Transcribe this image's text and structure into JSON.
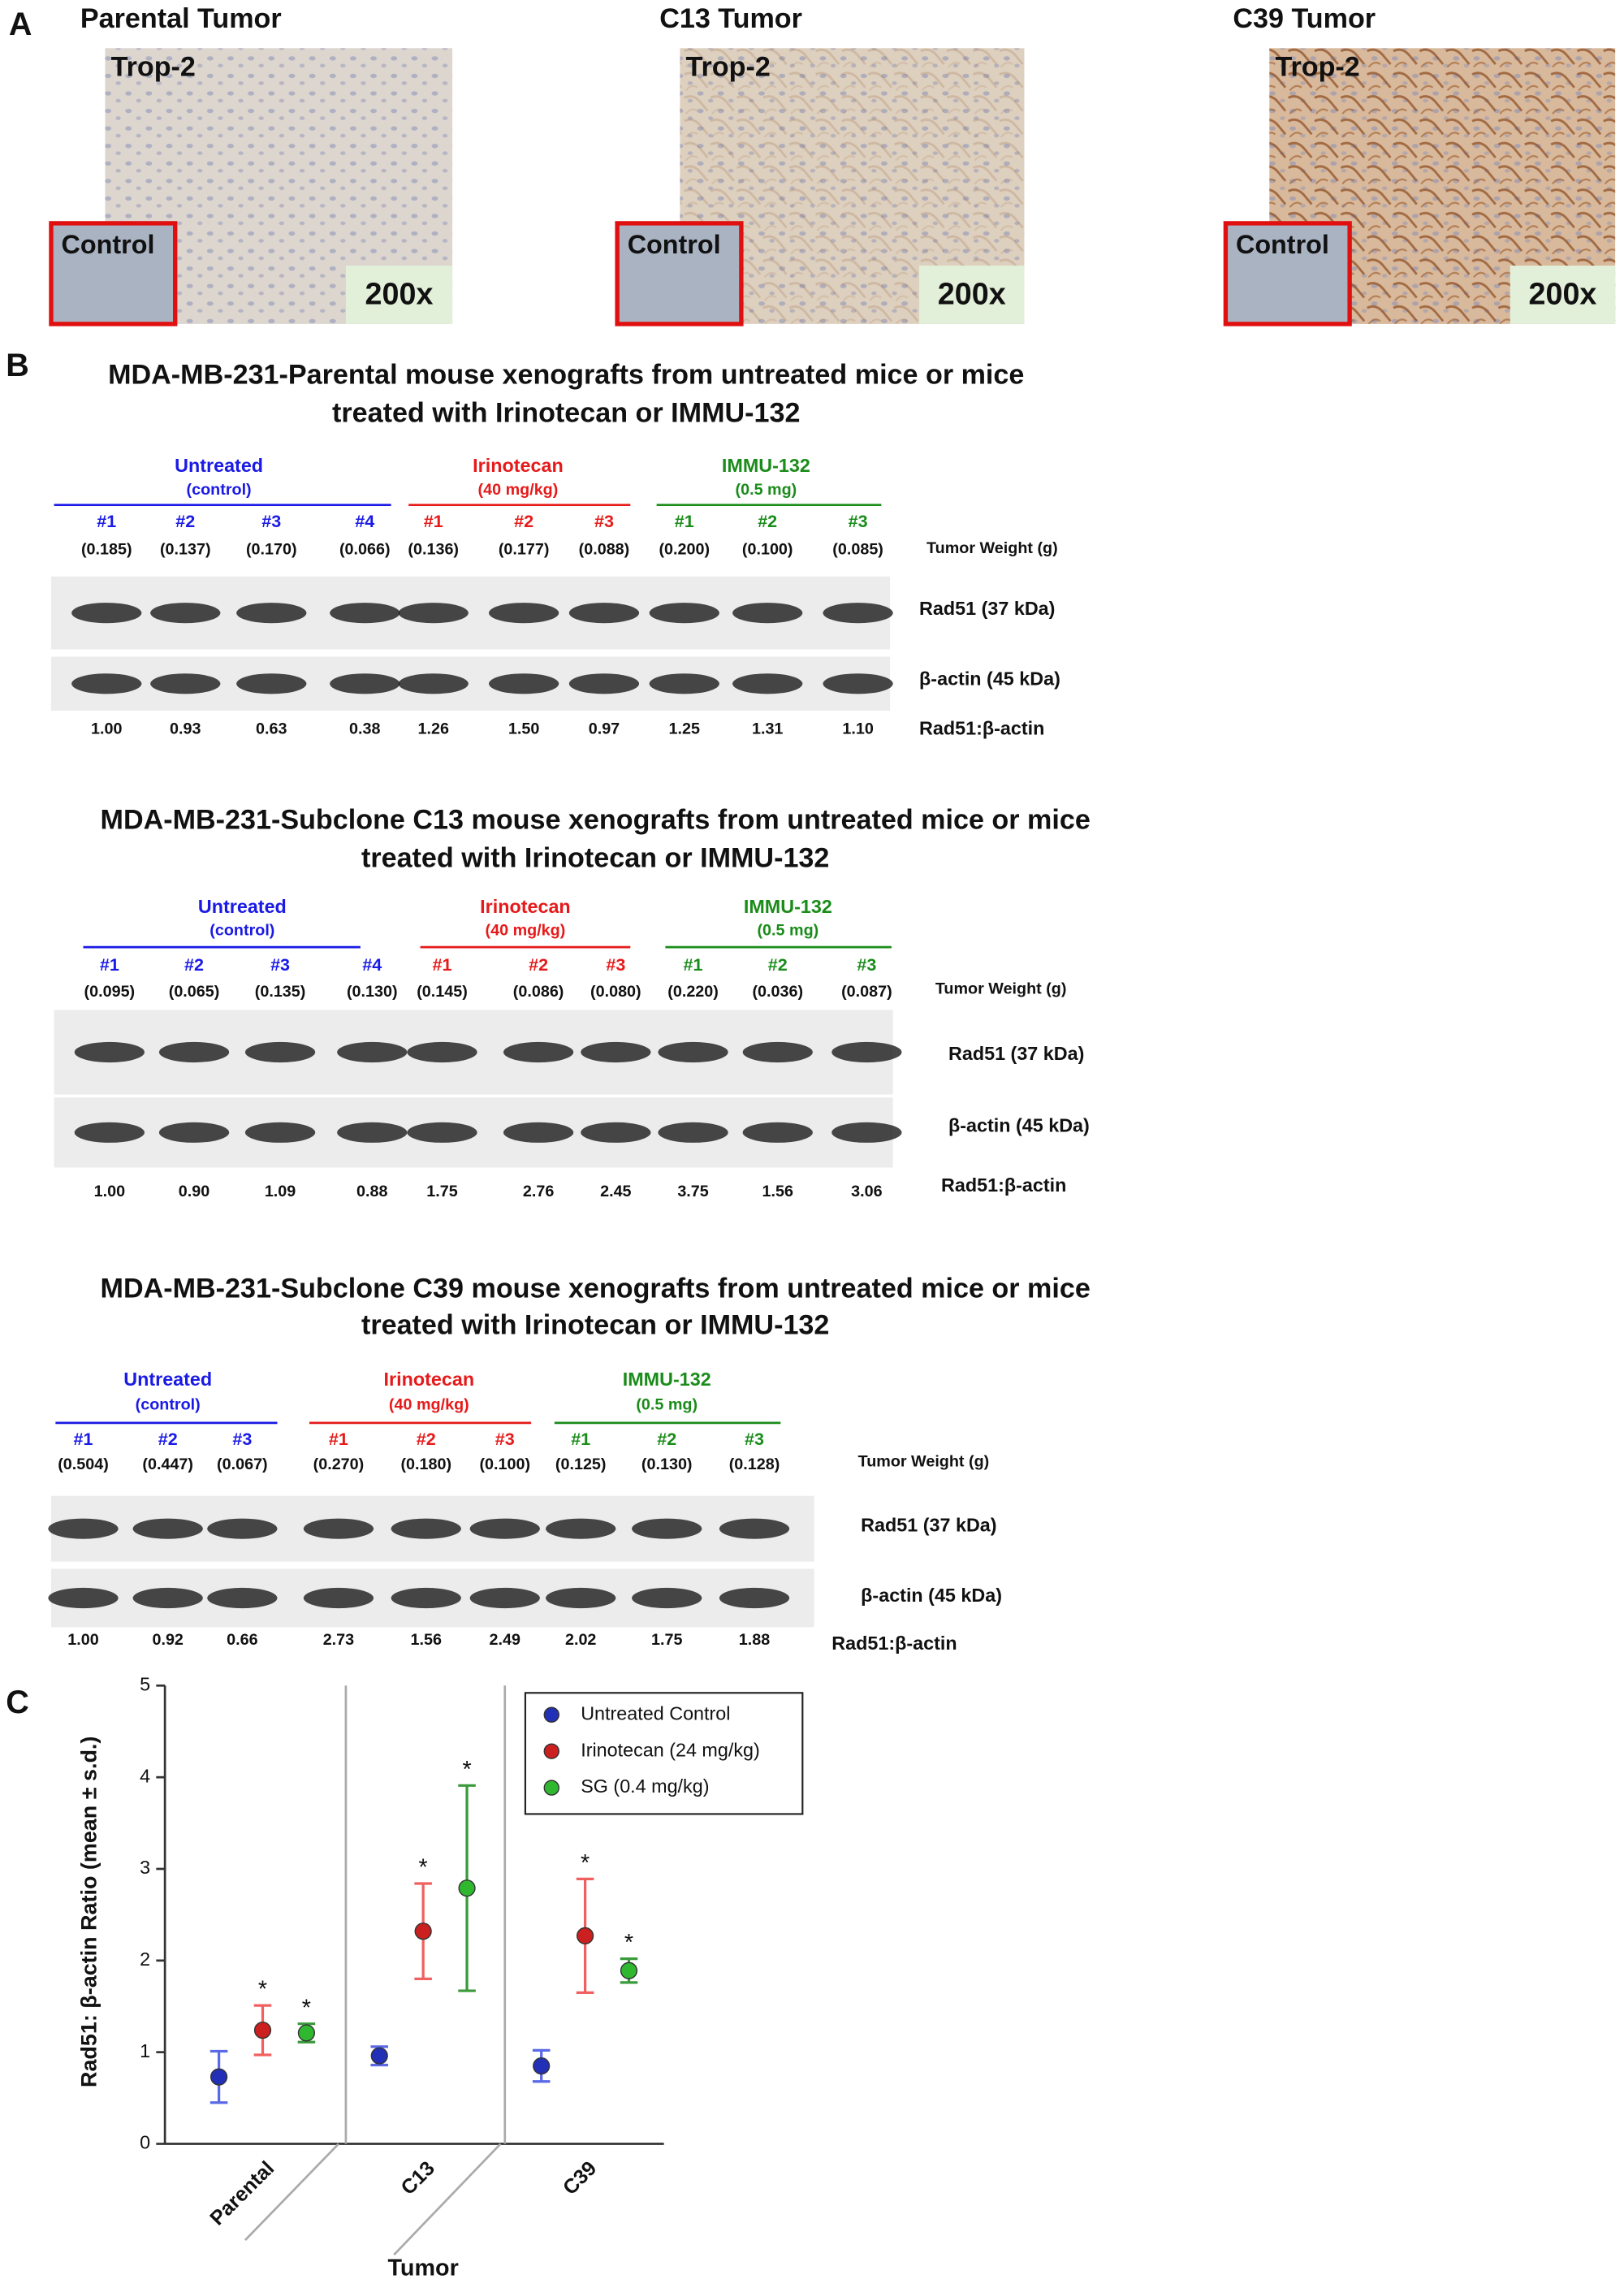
{
  "panel_a": {
    "label": "A",
    "images": [
      {
        "title": "Parental Tumor",
        "stain": "Trop-2",
        "control": "Control",
        "magnification": "200x"
      },
      {
        "title": "C13 Tumor",
        "stain": "Trop-2",
        "control": "Control",
        "magnification": "200x"
      },
      {
        "title": "C39 Tumor",
        "stain": "Trop-2",
        "control": "Control",
        "magnification": "200x"
      }
    ]
  },
  "panel_b": {
    "label": "B",
    "blots": [
      {
        "title_lines": [
          "MDA-MB-231-Parental  mouse xenografts from untreated mice or mice",
          "treated with Irinotecan or IMMU-132"
        ],
        "groups": [
          {
            "name": "Untreated",
            "dose": "(control)",
            "color": "#1a1ae6",
            "samples": [
              "#1",
              "#2",
              "#3",
              "#4"
            ],
            "weights": [
              "(0.185)",
              "(0.137)",
              "(0.170)",
              "(0.066)"
            ]
          },
          {
            "name": "Irinotecan",
            "dose": "(40 mg/kg)",
            "color": "#e61a1a",
            "samples": [
              "#1",
              "#2",
              "#3"
            ],
            "weights": [
              "(0.136)",
              "(0.177)",
              "(0.088)"
            ]
          },
          {
            "name": "IMMU-132",
            "dose": "(0.5 mg)",
            "color": "#1a8c1a",
            "samples": [
              "#1",
              "#2",
              "#3"
            ],
            "weights": [
              "(0.200)",
              "(0.100)",
              "(0.085)"
            ]
          }
        ],
        "weight_label": "Tumor Weight (g)",
        "bands": [
          "Rad51 (37 kDa)",
          "β-actin (45 kDa)"
        ],
        "ratio_label": "Rad51:β-actin",
        "ratios": [
          "1.00",
          "0.93",
          "0.63",
          "0.38",
          "1.26",
          "1.50",
          "0.97",
          "1.25",
          "1.31",
          "1.10"
        ]
      },
      {
        "title_lines": [
          "MDA-MB-231-Subclone C13 mouse xenografts from untreated mice or mice",
          "treated with Irinotecan or IMMU-132"
        ],
        "groups": [
          {
            "name": "Untreated",
            "dose": "(control)",
            "color": "#1a1ae6",
            "samples": [
              "#1",
              "#2",
              "#3",
              "#4"
            ],
            "weights": [
              "(0.095)",
              "(0.065)",
              "(0.135)",
              "(0.130)"
            ]
          },
          {
            "name": "Irinotecan",
            "dose": "(40 mg/kg)",
            "color": "#e61a1a",
            "samples": [
              "#1",
              "#2",
              "#3"
            ],
            "weights": [
              "(0.145)",
              "(0.086)",
              "(0.080)"
            ]
          },
          {
            "name": "IMMU-132",
            "dose": "(0.5 mg)",
            "color": "#1a8c1a",
            "samples": [
              "#1",
              "#2",
              "#3"
            ],
            "weights": [
              "(0.220)",
              "(0.036)",
              "(0.087)"
            ]
          }
        ],
        "weight_label": "Tumor Weight (g)",
        "bands": [
          "Rad51 (37 kDa)",
          "β-actin (45 kDa)"
        ],
        "ratio_label": "Rad51:β-actin",
        "ratios": [
          "1.00",
          "0.90",
          "1.09",
          "0.88",
          "1.75",
          "2.76",
          "2.45",
          "3.75",
          "1.56",
          "3.06"
        ]
      },
      {
        "title_lines": [
          "MDA-MB-231-Subclone C39 mouse xenografts from untreated mice or mice",
          "treated with Irinotecan or IMMU-132"
        ],
        "groups": [
          {
            "name": "Untreated",
            "dose": "(control)",
            "color": "#1a1ae6",
            "samples": [
              "#1",
              "#2",
              "#3"
            ],
            "weights": [
              "(0.504)",
              "(0.447)",
              "(0.067)"
            ]
          },
          {
            "name": "Irinotecan",
            "dose": "(40 mg/kg)",
            "color": "#e61a1a",
            "samples": [
              "#1",
              "#2",
              "#3"
            ],
            "weights": [
              "(0.270)",
              "(0.180)",
              "(0.100)"
            ]
          },
          {
            "name": "IMMU-132",
            "dose": "(0.5 mg)",
            "color": "#1a8c1a",
            "samples": [
              "#1",
              "#2",
              "#3"
            ],
            "weights": [
              "(0.125)",
              "(0.130)",
              "(0.128)"
            ]
          }
        ],
        "weight_label": "Tumor Weight (g)",
        "bands": [
          "Rad51 (37 kDa)",
          "β-actin (45 kDa)"
        ],
        "ratio_label": "Rad51:β-actin",
        "ratios": [
          "1.00",
          "0.92",
          "0.66",
          "2.73",
          "1.56",
          "2.49",
          "2.02",
          "1.75",
          "1.88"
        ]
      }
    ]
  },
  "chart_data": {
    "type": "scatter",
    "panel_label": "C",
    "categories": [
      "Parental",
      "C13",
      "C39"
    ],
    "x_label": "Tumor",
    "y_label": "Rad51: β-actin Ratio (mean ± s.d.)",
    "ylim": [
      0,
      5
    ],
    "yticks": [
      0,
      1,
      2,
      3,
      4,
      5
    ],
    "series": [
      {
        "name": "Untreated Control",
        "color": "#2230b8",
        "error_color": "#5a6ae6",
        "values": [
          0.73,
          0.96,
          0.85
        ],
        "errors": [
          0.28,
          0.1,
          0.17
        ]
      },
      {
        "name": "Irinotecan (24 mg/kg)",
        "color": "#cc1f1f",
        "error_color": "#f06060",
        "values": [
          1.24,
          2.32,
          2.27
        ],
        "errors": [
          0.27,
          0.52,
          0.62
        ],
        "markers": [
          "*",
          "*",
          "*"
        ]
      },
      {
        "name": "SG (0.4 mg/kg)",
        "color": "#2fb82f",
        "error_color": "#3a9a3a",
        "values": [
          1.21,
          2.79,
          1.89
        ],
        "errors": [
          0.1,
          1.12,
          0.13
        ],
        "markers": [
          "*",
          "*",
          "*"
        ]
      }
    ]
  }
}
